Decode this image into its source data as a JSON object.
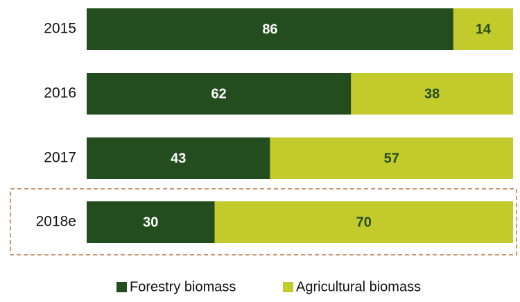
{
  "chart_data": {
    "type": "stacked-bar-horizontal",
    "categories": [
      "2015",
      "2016",
      "2017",
      "2018e"
    ],
    "series": [
      {
        "name": "Forestry biomass",
        "color": "#234d1f",
        "label_color": "#ffffff",
        "values": [
          86,
          62,
          43,
          30
        ]
      },
      {
        "name": "Agricultural biomass",
        "color": "#c3cb2c",
        "label_color": "#234d1f",
        "values": [
          14,
          38,
          57,
          70
        ]
      }
    ],
    "xlim": [
      0,
      100
    ]
  }
}
